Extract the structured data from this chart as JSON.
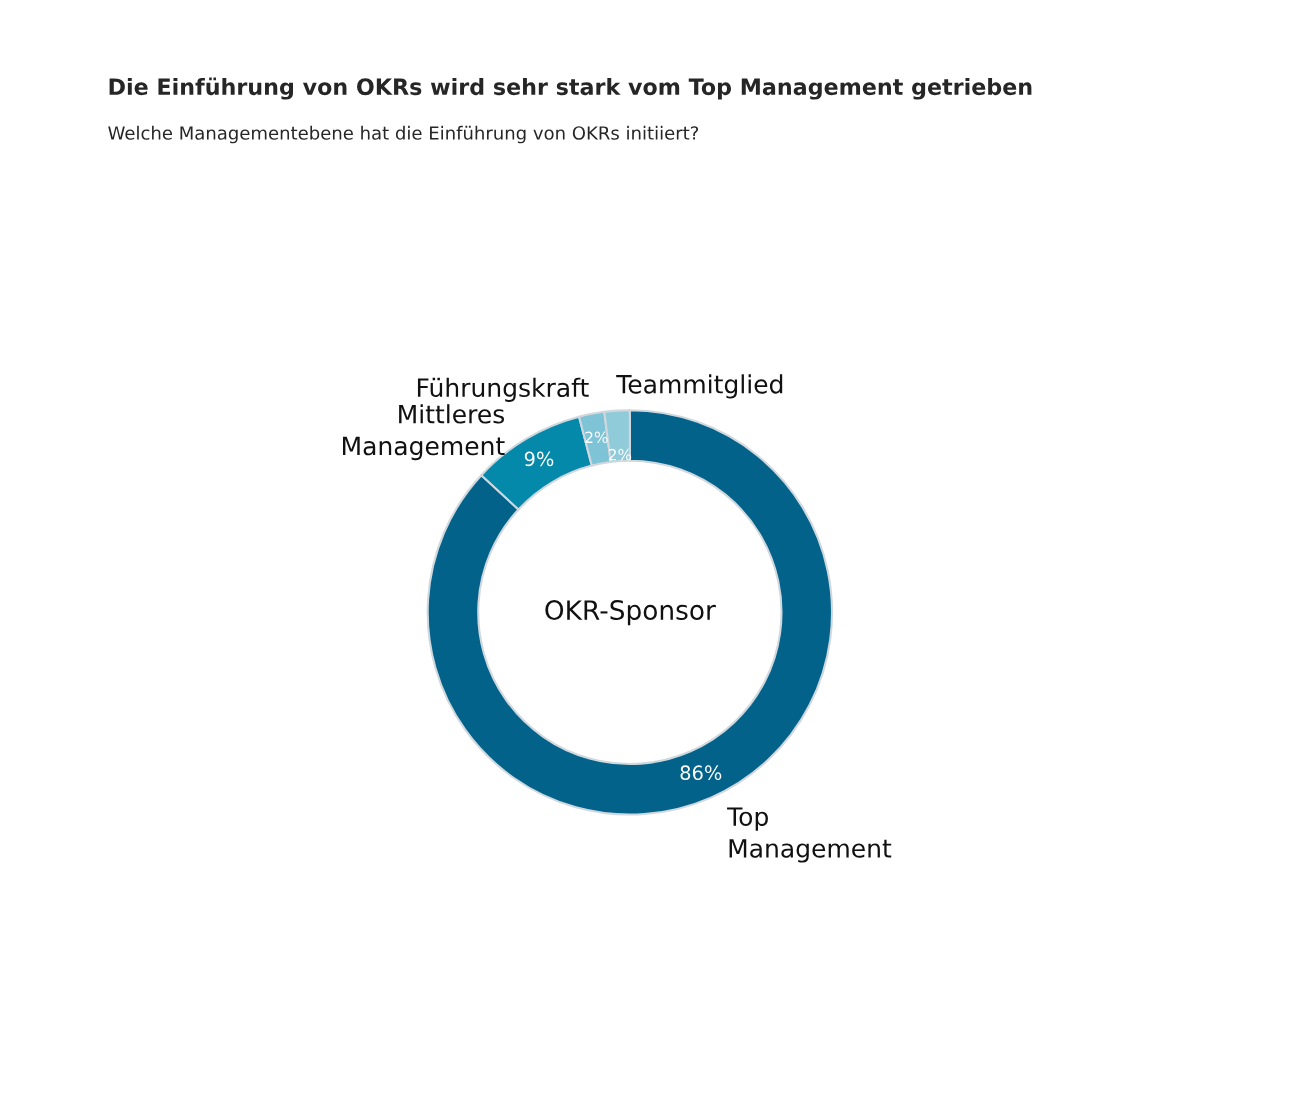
{
  "chart_data": {
    "type": "donut",
    "title": "Die Einführung von OKRs wird sehr stark vom Top Management getrieben",
    "subtitle": "Welche Managementebene hat die Einführung von OKRs initiiert?",
    "categories": [
      "Top\nManagement",
      "Mittleres\nManagement",
      "Führungskraft",
      "Teammitglied"
    ],
    "values": [
      86,
      9,
      2,
      2
    ],
    "colors": [
      "#02628a",
      "#0489aa",
      "#7fc3d6",
      "#8fcbd9"
    ],
    "value_labels": [
      "86%",
      "9%",
      "2%",
      "2%"
    ],
    "annotations": [
      "OKR-Sponsor"
    ]
  }
}
